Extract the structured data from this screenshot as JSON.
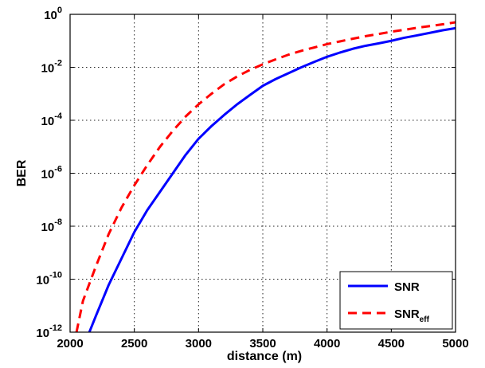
{
  "chart_data": {
    "type": "line",
    "xlabel": "distance (m)",
    "ylabel": "BER",
    "xlim": [
      2000,
      5000
    ],
    "ylim": [
      1e-12,
      1
    ],
    "yscale": "log",
    "grid": true,
    "legend_position": "bottom-right",
    "x_ticks": [
      "2000",
      "2500",
      "3000",
      "3500",
      "4000",
      "4500",
      "5000"
    ],
    "y_ticks": [
      {
        "base": "10",
        "exp": "0"
      },
      {
        "base": "10",
        "exp": "-2"
      },
      {
        "base": "10",
        "exp": "-4"
      },
      {
        "base": "10",
        "exp": "-6"
      },
      {
        "base": "10",
        "exp": "-8"
      },
      {
        "base": "10",
        "exp": "-10"
      },
      {
        "base": "10",
        "exp": "-12"
      }
    ],
    "series": [
      {
        "name": "SNR",
        "legend_main": "SNR",
        "legend_sub": "",
        "color": "#0000ff",
        "dash": "solid",
        "x": [
          2150,
          2200,
          2300,
          2400,
          2500,
          2600,
          2700,
          2800,
          2900,
          3000,
          3100,
          3200,
          3300,
          3400,
          3500,
          3600,
          3700,
          3800,
          3900,
          4000,
          4100,
          4200,
          4300,
          4400,
          4500,
          4600,
          4700,
          4800,
          4900,
          5000
        ],
        "y": [
          1e-12,
          4e-12,
          6e-11,
          6e-10,
          6e-09,
          4e-08,
          2e-07,
          1e-06,
          5e-06,
          2e-05,
          6e-05,
          0.00016,
          0.0004,
          0.0009,
          0.002,
          0.0036,
          0.006,
          0.01,
          0.016,
          0.025,
          0.036,
          0.05,
          0.065,
          0.08,
          0.1,
          0.13,
          0.16,
          0.2,
          0.25,
          0.3
        ]
      },
      {
        "name": "SNReff",
        "legend_main": "SNR",
        "legend_sub": "eff",
        "color": "#ff0000",
        "dash": "dashed",
        "x": [
          2050,
          2100,
          2200,
          2300,
          2400,
          2500,
          2600,
          2700,
          2800,
          2900,
          3000,
          3100,
          3200,
          3300,
          3400,
          3500,
          3600,
          3700,
          3800,
          3900,
          4000,
          4100,
          4200,
          4300,
          4400,
          4500,
          4600,
          4700,
          4800,
          4900,
          5000
        ],
        "y": [
          1e-12,
          1.5e-11,
          3e-10,
          5e-09,
          5e-08,
          3.5e-07,
          2e-06,
          1e-05,
          4e-05,
          0.00014,
          0.0004,
          0.001,
          0.0023,
          0.0045,
          0.008,
          0.013,
          0.02,
          0.03,
          0.042,
          0.056,
          0.075,
          0.095,
          0.12,
          0.15,
          0.18,
          0.22,
          0.26,
          0.31,
          0.36,
          0.42,
          0.5
        ]
      }
    ]
  }
}
